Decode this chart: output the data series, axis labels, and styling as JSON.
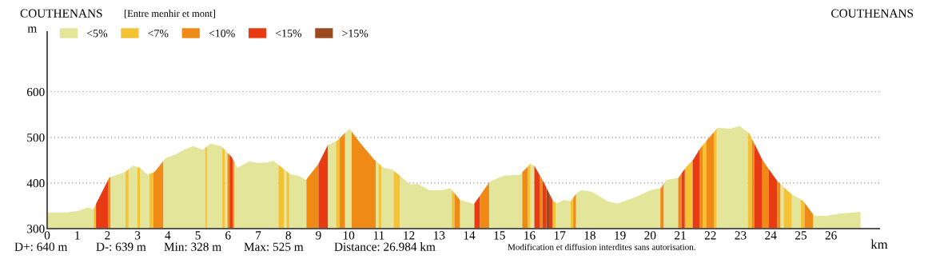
{
  "chart_data": {
    "type": "area",
    "title": "COUTHENANS",
    "subtitle": "[Entre menhir et mont]",
    "xlabel": "km",
    "ylabel": "m",
    "xlim": [
      0,
      27.6
    ],
    "xticks": [
      0,
      1,
      2,
      3,
      4,
      5,
      6,
      7,
      8,
      9,
      10,
      11,
      12,
      13,
      14,
      15,
      16,
      17,
      18,
      19,
      20,
      21,
      22,
      23,
      24,
      25,
      26
    ],
    "ylim": [
      300,
      731
    ],
    "yticks": [
      300,
      400,
      500,
      600
    ],
    "grid": "y",
    "legend": "top left",
    "annotations": [
      "COUTHENANS",
      "D+: 640 m",
      "D-: 639 m",
      "Min: 328 m",
      "Max: 525 m",
      "Distance: 26.984 km",
      "Modification et diffusion interdites sans autorisation."
    ],
    "series": [
      {
        "name": "<5%",
        "color": "#e3e69a",
        "x": [
          0,
          0.64,
          1.09,
          1.35,
          1.53,
          1.54,
          1.54,
          2.1,
          2.1,
          2.6,
          2.6,
          2.7,
          2.7,
          2.85,
          2.99,
          2.99,
          3.08,
          3.08,
          3.34,
          3.39,
          3.39,
          3.85,
          3.85,
          3.92,
          4.27,
          4.54,
          4.85,
          5.16,
          5.24,
          5.24,
          5.3,
          5.3,
          5.42,
          5.77,
          5.81,
          5.81,
          5.9,
          5.9,
          5.98,
          5.98,
          6.2,
          6.2,
          6.31,
          6.7,
          6.97,
          7.3,
          7.5,
          7.67,
          7.67,
          7.85,
          7.85,
          7.94,
          7.94,
          8.03,
          8.03,
          8.07,
          8.34,
          8.58,
          8.6,
          8.6,
          9.31,
          9.31,
          9.58,
          9.58,
          9.88,
          9.88,
          10.03,
          10.1,
          10.1,
          10.9,
          10.9,
          10.99,
          10.99,
          11.08,
          11.08,
          11.17,
          11.43,
          11.49,
          11.49,
          11.7,
          11.7,
          12.04,
          12.3,
          12.68,
          13.1,
          13.37,
          13.42,
          13.42,
          13.69,
          13.69,
          14.16,
          14.17,
          14.17,
          14.66,
          14.66,
          14.7,
          15.15,
          15.68,
          15.76,
          15.76,
          16.03,
          16.03,
          16.16,
          16.16,
          16.87,
          16.87,
          16.92,
          17.14,
          17.36,
          17.36,
          17.54,
          17.54,
          17.7,
          18.06,
          18.59,
          18.91,
          19.47,
          20.0,
          20.34,
          20.34,
          20.45,
          20.45,
          20.53,
          20.93,
          20.93,
          22.21,
          22.21,
          22.23,
          22.67,
          22.97,
          23.24,
          23.24,
          24.32,
          24.32,
          24.43,
          24.43,
          24.7,
          24.7,
          25.0,
          25.0,
          25.4,
          25.4,
          25.44,
          25.84,
          26.29,
          26.68,
          26.98
        ],
        "values": [
          335,
          335,
          340,
          347,
          342,
          343,
          300,
          300,
          413,
          425,
          300,
          300,
          430,
          438,
          435,
          300,
          300,
          433,
          418,
          420,
          300,
          300,
          448,
          454,
          463,
          473,
          481,
          473,
          477,
          300,
          300,
          480,
          486,
          481,
          478,
          300,
          300,
          472,
          466,
          300,
          300,
          447,
          433,
          447,
          444,
          445,
          449,
          440,
          300,
          300,
          430,
          426,
          300,
          300,
          421,
          419,
          416,
          407,
          408,
          300,
          300,
          483,
          492,
          300,
          300,
          510,
          519,
          513,
          300,
          300,
          448,
          443,
          300,
          300,
          438,
          433,
          430,
          427,
          300,
          300,
          416,
          397,
          398,
          384,
          384,
          389,
          385,
          300,
          300,
          363,
          354,
          355,
          300,
          300,
          401,
          404,
          416,
          418,
          424,
          300,
          300,
          442,
          438,
          300,
          300,
          357,
          356,
          363,
          360,
          300,
          300,
          376,
          384,
          381,
          360,
          355,
          368,
          384,
          389,
          300,
          300,
          399,
          407,
          411,
          300,
          300,
          519,
          521,
          519,
          525,
          511,
          300,
          300,
          398,
          391,
          300,
          300,
          375,
          364,
          300,
          300,
          332,
          328,
          328,
          333,
          335,
          337
        ]
      },
      {
        "name": "<7%",
        "color": "#f3c335",
        "x": [
          1.54,
          1.62,
          1.62,
          2.6,
          2.6,
          2.7,
          2.7,
          2.99,
          2.99,
          3.08,
          3.08,
          3.39,
          3.39,
          3.52,
          3.52,
          5.24,
          5.24,
          5.3,
          5.3,
          5.81,
          5.81,
          5.9,
          5.9,
          7.67,
          7.67,
          7.8,
          7.85,
          7.85,
          7.94,
          7.94,
          8.03,
          8.03,
          9.58,
          9.58,
          9.66,
          9.7,
          9.7,
          10.99,
          10.99,
          11.08,
          11.08,
          11.49,
          11.49,
          11.7,
          11.7,
          13.42,
          13.42,
          13.51,
          13.51,
          15.94,
          15.94,
          16.02,
          16.03,
          16.03,
          16.76,
          16.76,
          16.78,
          16.87,
          16.87,
          17.36,
          17.36,
          17.45,
          17.45,
          21.15,
          21.15,
          21.17,
          21.41,
          21.41,
          21.75,
          21.75,
          21.86,
          21.86,
          22.12,
          22.12,
          22.21,
          22.21,
          23.24,
          23.24,
          23.29,
          23.37,
          23.37,
          24.43,
          24.43,
          24.7,
          24.7,
          25.0,
          25.0,
          25.09,
          25.12
        ],
        "values": [
          343,
          354,
          300,
          300,
          425,
          430,
          300,
          300,
          435,
          433,
          300,
          300,
          420,
          423,
          300,
          300,
          477,
          480,
          300,
          300,
          478,
          472,
          300,
          300,
          440,
          433,
          430,
          300,
          300,
          426,
          421,
          300,
          300,
          492,
          495,
          498,
          300,
          300,
          443,
          438,
          300,
          300,
          427,
          416,
          300,
          300,
          385,
          378,
          300,
          300,
          436,
          442,
          442,
          300,
          300,
          363,
          360,
          357,
          300,
          300,
          360,
          368,
          300,
          300,
          431,
          433,
          450,
          300,
          300,
          483,
          492,
          300,
          300,
          512,
          519,
          300,
          300,
          511,
          509,
          498,
          300,
          300,
          391,
          375,
          300,
          300,
          364,
          360,
          357
        ]
      },
      {
        "name": "<10%",
        "color": "#ef8a17",
        "x": [
          2.02,
          2.06,
          2.1,
          2.1,
          3.52,
          3.52,
          3.57,
          3.85,
          3.85,
          5.98,
          5.98,
          6.05,
          6.05,
          6.15,
          6.15,
          6.2,
          6.2,
          8.6,
          8.6,
          9.0,
          9.0,
          9.7,
          9.7,
          9.88,
          9.88,
          10.1,
          10.1,
          10.37,
          10.85,
          10.9,
          10.9,
          13.51,
          13.51,
          13.69,
          13.69,
          14.35,
          14.35,
          14.66,
          14.66,
          15.76,
          15.76,
          15.94,
          15.94,
          16.34,
          16.34,
          16.43,
          16.43,
          17.45,
          17.45,
          17.53,
          17.54,
          17.54,
          20.34,
          20.34,
          20.36,
          20.45,
          20.45,
          20.93,
          20.93,
          21.04,
          21.04,
          21.64,
          21.64,
          21.75,
          21.75,
          21.86,
          21.86,
          22.12,
          22.12,
          23.37,
          23.37,
          23.46,
          23.46,
          23.72,
          23.72,
          23.94,
          23.94,
          24.21,
          24.21,
          24.22,
          24.32,
          24.32,
          25.12,
          25.12,
          25.4
        ],
        "values": [
          407,
          412,
          413,
          300,
          300,
          423,
          425,
          448,
          300,
          300,
          466,
          462,
          300,
          300,
          453,
          447,
          300,
          300,
          408,
          442,
          300,
          300,
          498,
          510,
          300,
          300,
          513,
          489,
          451,
          448,
          300,
          300,
          378,
          363,
          300,
          300,
          372,
          401,
          300,
          300,
          424,
          436,
          300,
          300,
          417,
          407,
          300,
          300,
          368,
          375,
          376,
          300,
          300,
          389,
          389,
          399,
          300,
          300,
          411,
          421,
          300,
          300,
          474,
          483,
          300,
          300,
          492,
          512,
          300,
          300,
          498,
          486,
          300,
          300,
          451,
          430,
          300,
          300,
          405,
          404,
          398,
          300,
          300,
          357,
          332
        ]
      },
      {
        "name": "<15%",
        "color": "#e73c13",
        "x": [
          1.62,
          2.02,
          2.02,
          6.05,
          6.05,
          6.13,
          6.15,
          6.15,
          9.0,
          9.0,
          9.31,
          9.31,
          14.17,
          14.17,
          14.35,
          14.35,
          16.16,
          16.16,
          16.34,
          16.34,
          16.43,
          16.43,
          16.47,
          16.56,
          16.56,
          16.65,
          16.65,
          16.76,
          16.76,
          21.04,
          21.04,
          21.15,
          21.15,
          21.41,
          21.41,
          21.43,
          21.64,
          21.64,
          23.46,
          23.46,
          23.72,
          23.72,
          23.94,
          23.94,
          24.21
        ],
        "values": [
          354,
          407,
          300,
          300,
          462,
          456,
          453,
          300,
          300,
          442,
          483,
          300,
          300,
          355,
          372,
          300,
          300,
          438,
          417,
          300,
          300,
          407,
          402,
          390,
          300,
          300,
          378,
          363,
          300,
          300,
          421,
          431,
          300,
          300,
          450,
          451,
          474,
          300,
          300,
          486,
          451,
          300,
          300,
          430,
          405
        ]
      },
      {
        "name": ">15%",
        "color": "#9b4a1f",
        "x": [
          16.56,
          16.65
        ],
        "values": [
          390,
          378
        ]
      }
    ]
  }
}
